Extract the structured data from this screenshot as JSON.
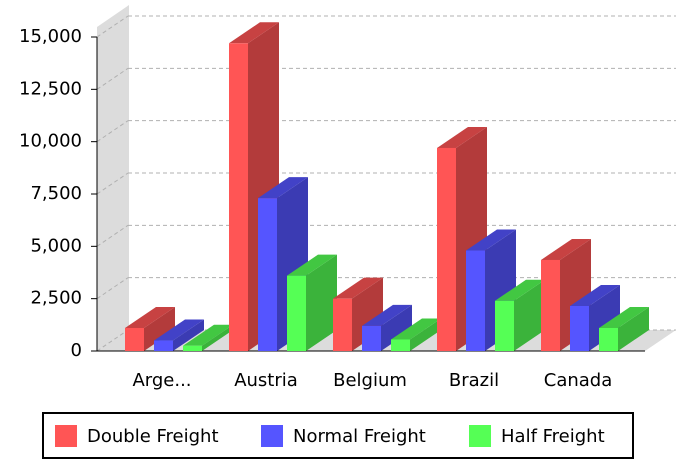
{
  "chart_data": {
    "type": "bar3d",
    "categories": [
      "Arge...",
      "Austria",
      "Belgium",
      "Brazil",
      "Canada"
    ],
    "series": [
      {
        "name": "Double Freight",
        "color": "#ff5555",
        "values": [
          1100,
          14700,
          2500,
          9700,
          4350
        ]
      },
      {
        "name": "Normal Freight",
        "color": "#5555ff",
        "values": [
          500,
          7300,
          1200,
          4800,
          2150
        ]
      },
      {
        "name": "Half Freight",
        "color": "#55ff55",
        "values": [
          250,
          3600,
          550,
          2400,
          1100
        ]
      }
    ],
    "ylim": [
      0,
      15000
    ],
    "yticks": [
      0,
      {
        "value": 2500,
        "label": "2,500"
      },
      {
        "value": 5000,
        "label": "5,000"
      },
      {
        "value": 7500,
        "label": "7,500"
      },
      {
        "value": 10000,
        "label": "10,000"
      },
      {
        "value": 12500,
        "label": "12,500"
      },
      {
        "value": 15000,
        "label": "15,000"
      }
    ],
    "grid": true
  }
}
